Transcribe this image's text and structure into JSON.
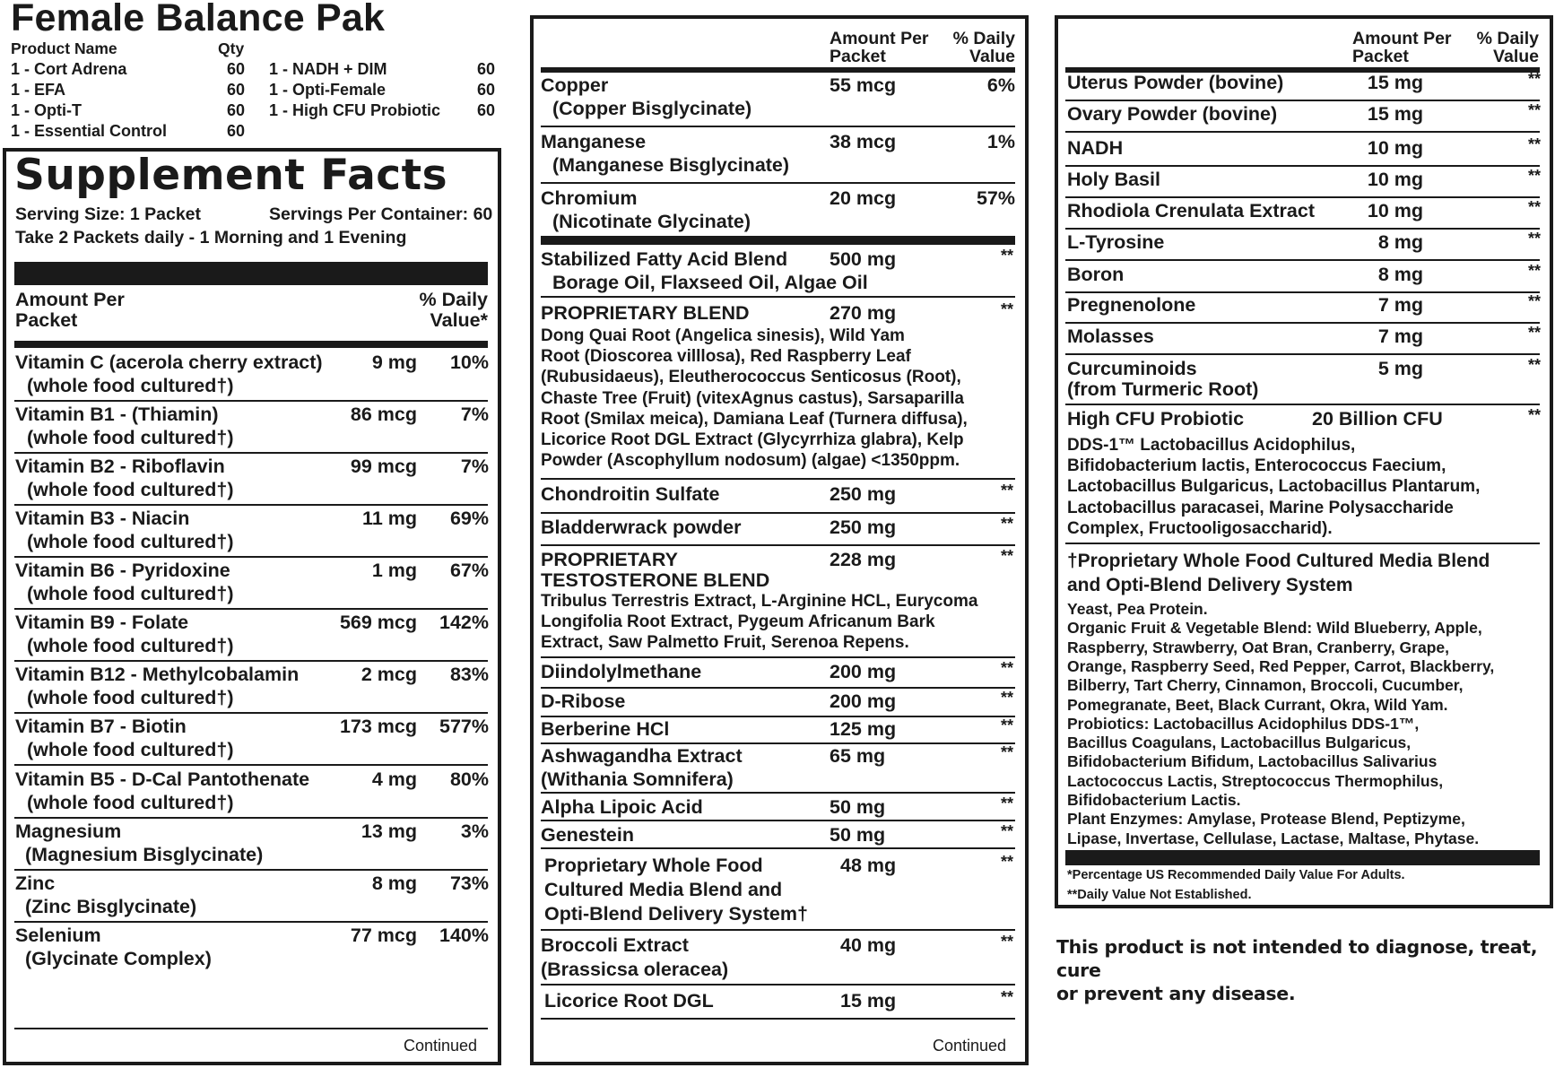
{
  "header": {
    "title": "Female Balance Pak",
    "col_product": "Product Name",
    "col_qty": "Qty",
    "products_left": [
      {
        "name": "1 - Cort Adrena",
        "qty": "60"
      },
      {
        "name": "1 - EFA",
        "qty": "60"
      },
      {
        "name": "1 - Opti-T",
        "qty": "60"
      },
      {
        "name": "1 - Essential Control",
        "qty": "60"
      }
    ],
    "products_right": [
      {
        "name": "1 - NADH + DIM",
        "qty": "60"
      },
      {
        "name": "1 - Opti-Female",
        "qty": "60"
      },
      {
        "name": "1 - High CFU Probiotic",
        "qty": "60"
      }
    ]
  },
  "panel1": {
    "title": "Supplement Facts",
    "serving_size": "Serving Size: 1 Packet",
    "servings_per_container": "Servings Per Container: 60",
    "directions": "Take 2 Packets daily - 1 Morning and 1 Evening",
    "amount_head_1": "Amount Per",
    "amount_head_2": "Packet",
    "dv_head_1": "% Daily",
    "dv_head_2": "Value*",
    "rows": [
      {
        "name": "Vitamin C (acerola cherry extract)",
        "sub": "(whole food cultured†)",
        "amount": "9 mg",
        "dv": "10%"
      },
      {
        "name": "Vitamin B1 - (Thiamin)",
        "sub": "(whole food cultured†)",
        "amount": "86 mcg",
        "dv": "7%"
      },
      {
        "name": "Vitamin B2 - Riboflavin",
        "sub": "(whole food cultured†)",
        "amount": "99 mcg",
        "dv": "7%"
      },
      {
        "name": "Vitamin B3 - Niacin",
        "sub": "(whole food cultured†)",
        "amount": "11 mg",
        "dv": "69%"
      },
      {
        "name": "Vitamin B6 - Pyridoxine",
        "sub": "(whole food cultured†)",
        "amount": "1 mg",
        "dv": "67%"
      },
      {
        "name": "Vitamin B9 - Folate",
        "sub": "(whole food cultured†)",
        "amount": "569 mcg",
        "dv": "142%"
      },
      {
        "name": "Vitamin B12 - Methylcobalamin",
        "sub": "(whole food cultured†)",
        "amount": "2 mcg",
        "dv": "83%"
      },
      {
        "name": "Vitamin B7 - Biotin",
        "sub": "(whole food cultured†)",
        "amount": "173 mcg",
        "dv": "577%"
      },
      {
        "name": "Vitamin B5 - D-Cal Pantothenate",
        "sub": "(whole food cultured†)",
        "amount": "4 mg",
        "dv": "80%"
      },
      {
        "name": "Magnesium",
        "sub": "(Magnesium Bisglycinate)",
        "amount": "13 mg",
        "dv": "3%"
      },
      {
        "name": "Zinc",
        "sub": "(Zinc Bisglycinate)",
        "amount": "8 mg",
        "dv": "73%"
      },
      {
        "name": "Selenium",
        "sub": "(Glycinate Complex)",
        "amount": "77 mcg",
        "dv": "140%"
      }
    ],
    "continued": "Continued"
  },
  "panel2": {
    "amount_head_1": "Amount Per",
    "amount_head_2": "Packet",
    "dv_head_1": "% Daily",
    "dv_head_2": "Value",
    "minerals": [
      {
        "name": "Copper",
        "sub": "(Copper Bisglycinate)",
        "amount": "55 mcg",
        "dv": "6%"
      },
      {
        "name": "Manganese",
        "sub": "(Manganese Bisglycinate)",
        "amount": "38 mcg",
        "dv": "1%"
      },
      {
        "name": "Chromium",
        "sub": "(Nicotinate Glycinate)",
        "amount": "20 mcg",
        "dv": "57%"
      }
    ],
    "fatty": {
      "name": "Stabilized Fatty Acid Blend",
      "sub": "Borage Oil, Flaxseed Oil, Algae Oil",
      "amount": "500 mg",
      "dv": "**"
    },
    "prop_blend": {
      "name": "PROPRIETARY BLEND",
      "amount": "270 mg",
      "dv": "**",
      "lines": [
        "Dong Quai Root (Angelica sinesis), Wild Yam",
        "Root (Dioscorea villlosa), Red Raspberry Leaf",
        "(Rubusidaeus), Eleutherococcus Senticosus (Root),",
        "Chaste Tree (Fruit) (vitexAgnus castus), Sarsaparilla",
        "Root (Smilax meica), Damiana Leaf (Turnera diffusa),",
        "Licorice Root DGL Extract (Glycyrrhiza glabra), Kelp",
        "Powder (Ascophyllum nodosum) (algae) <1350ppm."
      ]
    },
    "chondroitin": {
      "name": "Chondroitin Sulfate",
      "amount": "250 mg",
      "dv": "**"
    },
    "bladderwrack": {
      "name": "Bladderwrack powder",
      "amount": "250 mg",
      "dv": "**"
    },
    "testo": {
      "name_1": "PROPRIETARY",
      "name_2": "TESTOSTERONE BLEND",
      "amount": "228 mg",
      "dv": "**",
      "lines": [
        "Tribulus Terrestris Extract, L-Arginine HCL, Eurycoma",
        "Longifolia Root Extract, Pygeum Africanum Bark",
        "Extract, Saw Palmetto Fruit, Serenoa Repens."
      ]
    },
    "diindolyl": {
      "name": "Diindolylmethane",
      "amount": "200 mg",
      "dv": "**"
    },
    "dribose": {
      "name": "D-Ribose",
      "amount": "200 mg",
      "dv": "**"
    },
    "berberine": {
      "name": "Berberine HCl",
      "amount": "125 mg",
      "dv": "**"
    },
    "ashwa": {
      "name": "Ashwagandha Extract",
      "sub": "(Withania Somnifera)",
      "amount": "65 mg",
      "dv": "**"
    },
    "alpha": {
      "name": "Alpha Lipoic Acid",
      "amount": "50 mg",
      "dv": "**"
    },
    "genestein": {
      "name": "Genestein",
      "amount": "50 mg",
      "dv": "**"
    },
    "wholefood": {
      "line_1": "Proprietary Whole Food",
      "line_2": "Cultured Media Blend and",
      "line_3": "Opti-Blend Delivery System†",
      "amount": "48 mg",
      "dv": "**"
    },
    "broccoli": {
      "name": "Broccoli Extract",
      "sub": "(Brassicsa oleracea)",
      "amount": "40 mg",
      "dv": "**"
    },
    "licorice": {
      "name": "Licorice Root DGL",
      "amount": "15 mg",
      "dv": "**"
    },
    "continued": "Continued"
  },
  "panel3": {
    "amount_head_1": "Amount Per",
    "amount_head_2": "Packet",
    "dv_head_1": "% Daily",
    "dv_head_2": "Value",
    "rows": [
      {
        "name": "Uterus Powder (bovine)",
        "amount": "15 mg",
        "dv": "**"
      },
      {
        "name": "Ovary Powder (bovine)",
        "amount": "15 mg",
        "dv": "**"
      },
      {
        "name": "NADH",
        "amount": "10 mg",
        "dv": "**"
      },
      {
        "name": "Holy Basil",
        "amount": "10 mg",
        "dv": "**"
      },
      {
        "name": "Rhodiola Crenulata Extract",
        "amount": "10 mg",
        "dv": "**"
      },
      {
        "name": "L-Tyrosine",
        "amount": "8 mg",
        "dv": "**"
      },
      {
        "name": "Boron",
        "amount": "8 mg",
        "dv": "**"
      },
      {
        "name": "Pregnenolone",
        "amount": "7 mg",
        "dv": "**"
      },
      {
        "name": "Molasses",
        "amount": "7 mg",
        "dv": "**"
      }
    ],
    "curcuminoids": {
      "name": "Curcuminoids",
      "sub": "(from Turmeric Root)",
      "amount": "5 mg",
      "dv": "**"
    },
    "probiotic": {
      "name": "High CFU Probiotic",
      "amount": "20 Billion CFU",
      "dv": "**",
      "lines": [
        "DDS-1™ Lactobacillus Acidophilus,",
        "Bifidobacterium lactis, Enterococcus Faecium,",
        "Lactobacillus Bulgaricus, Lactobacillus Plantarum,",
        "Lactobacillus paracasei, Marine Polysaccharide",
        "Complex, Fructooligosaccharid)."
      ]
    },
    "media_title_1": "†Proprietary Whole Food Cultured Media Blend",
    "media_title_2": "and Opti-Blend Delivery System",
    "media_lines": [
      "Yeast, Pea Protein.",
      "Organic Fruit & Vegetable Blend: Wild Blueberry, Apple,",
      "Raspberry, Strawberry, Oat Bran, Cranberry, Grape,",
      "Orange, Raspberry Seed, Red Pepper, Carrot, Blackberry,",
      "Bilberry, Tart Cherry, Cinnamon, Broccoli, Cucumber,",
      "Pomegranate, Beet, Black Currant, Okra, Wild Yam.",
      "Probiotics: Lactobacillus Acidophilus DDS-1™,",
      "Bacillus Coagulans, Lactobacillus Bulgaricus,",
      "Bifidobacterium Bifidum, Lactobacillus Salivarius",
      "Lactococcus Lactis, Streptococcus Thermophilus,",
      "Bifidobacterium Lactis.",
      "Plant Enzymes: Amylase, Protease Blend, Peptizyme,",
      "Lipase, Invertase, Cellulase, Lactase, Maltase, Phytase."
    ],
    "footnote_1": "*Percentage US Recommended Daily Value For Adults.",
    "footnote_2": "**Daily Value Not Established."
  },
  "disclaimer_1": "This product is not intended to diagnose, treat, cure",
  "disclaimer_2": "or prevent any disease."
}
